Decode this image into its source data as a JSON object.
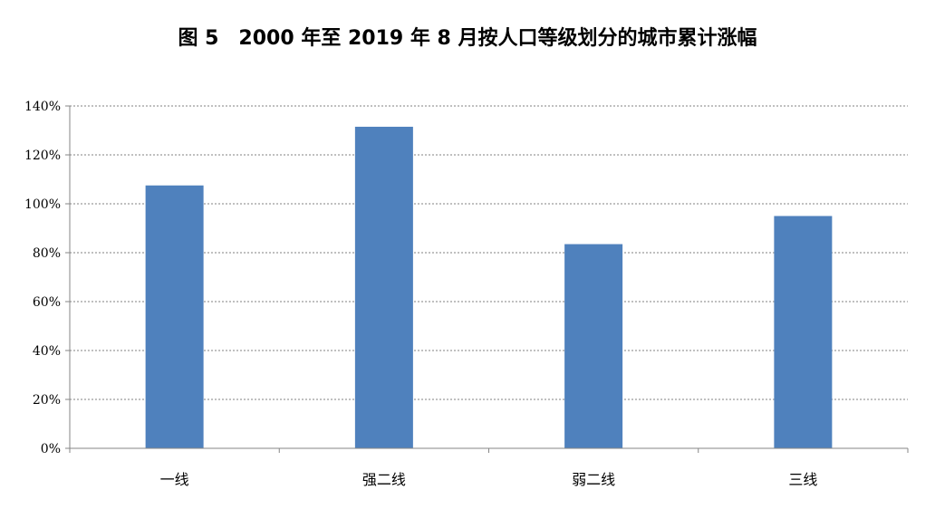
{
  "chart_data": {
    "type": "bar",
    "title": "图 5　2000 年至 2019 年 8 月按人口等级划分的城市累计涨幅",
    "categories": [
      "一线",
      "强二线",
      "弱二线",
      "三线"
    ],
    "values": [
      107.5,
      131.5,
      83.5,
      95.0
    ],
    "ylim": [
      0,
      140
    ],
    "yticks": [
      0,
      20,
      40,
      60,
      80,
      100,
      120,
      140
    ],
    "ytick_labels": [
      "0%",
      "20%",
      "40%",
      "60%",
      "80%",
      "100%",
      "120%",
      "140%"
    ],
    "grid": true,
    "legend": "none",
    "bar_color": "#4F81BD"
  }
}
